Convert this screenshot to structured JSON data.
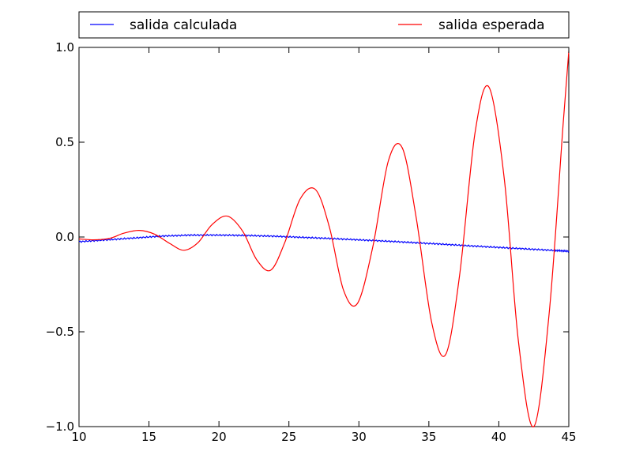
{
  "chart_data": {
    "type": "line",
    "xlim": [
      10,
      45
    ],
    "ylim": [
      -1.0,
      1.0
    ],
    "x_ticks": [
      10,
      15,
      20,
      25,
      30,
      35,
      40,
      45
    ],
    "x_tick_labels": [
      "10",
      "15",
      "20",
      "25",
      "30",
      "35",
      "40",
      "45"
    ],
    "y_ticks": [
      -1.0,
      -0.5,
      0.0,
      0.5,
      1.0
    ],
    "y_tick_labels": [
      "−1.0",
      "−0.5",
      "0.0",
      "0.5",
      "1.0"
    ],
    "grid": false,
    "legend_placement": "top, above plot, two columns",
    "series": [
      {
        "name": "salida calculada",
        "color": "#0000ff",
        "x": [
          10,
          12,
          14,
          16,
          18,
          20,
          22,
          24,
          26,
          28,
          30,
          32,
          34,
          36,
          38,
          40,
          42,
          44,
          45
        ],
        "y": [
          -0.025,
          -0.015,
          -0.005,
          0.005,
          0.01,
          0.01,
          0.008,
          0.004,
          -0.002,
          -0.008,
          -0.015,
          -0.022,
          -0.03,
          -0.038,
          -0.047,
          -0.055,
          -0.063,
          -0.071,
          -0.075
        ]
      },
      {
        "name": "salida esperada",
        "color": "#ff0000",
        "x": [
          10,
          11.0,
          12.0,
          12.5,
          13.2,
          14.3,
          15.4,
          16.5,
          17.5,
          18.5,
          19.5,
          20.6,
          21.7,
          22.7,
          23.7,
          24.7,
          25.8,
          26.9,
          27.9,
          28.9,
          29.9,
          31.0,
          32.1,
          33.1,
          34.1,
          35.2,
          36.2,
          37.2,
          38.3,
          39.3,
          40.4,
          41.4,
          42.5,
          43.6,
          44.6,
          45
        ],
        "y": [
          -0.01,
          -0.015,
          -0.01,
          0.0,
          0.02,
          0.035,
          0.015,
          -0.035,
          -0.07,
          -0.03,
          0.065,
          0.11,
          0.03,
          -0.12,
          -0.175,
          -0.03,
          0.2,
          0.25,
          0.05,
          -0.28,
          -0.35,
          -0.05,
          0.4,
          0.47,
          0.1,
          -0.45,
          -0.62,
          -0.2,
          0.55,
          0.79,
          0.3,
          -0.55,
          -1.0,
          -0.4,
          0.6,
          0.98
        ]
      }
    ]
  }
}
